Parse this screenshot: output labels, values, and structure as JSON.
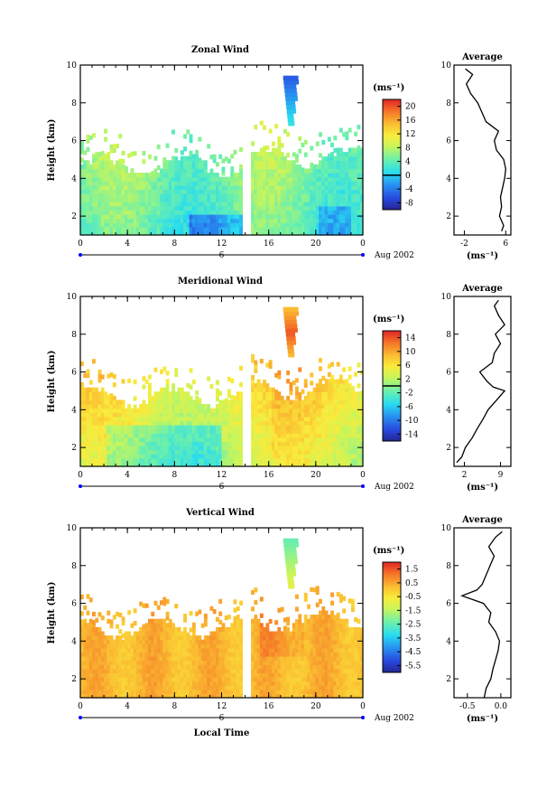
{
  "chart_data": [
    {
      "type": "heatmap",
      "title": "Zonal Wind",
      "ylabel": "Height (km)",
      "xlabel": "",
      "x_ticks": [
        "0",
        "4",
        "8",
        "12",
        "16",
        "20",
        "0"
      ],
      "y_ticks": [
        "2",
        "4",
        "6",
        "8",
        "10"
      ],
      "date_mark": "6",
      "date_label": "Aug 2002",
      "xlim": [
        0,
        24
      ],
      "ylim": [
        1,
        10
      ],
      "colorbar": {
        "unit": "(ms⁻¹)",
        "ticks": [
          "-8",
          "-4",
          "0",
          "4",
          "8",
          "12",
          "16",
          "20"
        ],
        "range": [
          -10,
          22
        ],
        "contour_at": 0
      },
      "data_gap": [
        13.8,
        14.4
      ],
      "profile": {
        "title": "Average",
        "unit": "(ms⁻¹)",
        "x_ticks": [
          "-2",
          "6"
        ],
        "xlim": [
          -4,
          7
        ],
        "y_ticks": [
          "2",
          "4",
          "6",
          "8",
          "10"
        ],
        "heights": [
          1.2,
          1.5,
          2.0,
          2.5,
          3.0,
          3.5,
          4.0,
          4.5,
          5.0,
          5.5,
          6.0,
          6.5,
          7.0,
          7.5,
          8.0,
          8.5,
          9.0,
          9.5,
          9.8
        ],
        "values": [
          5.2,
          5.6,
          4.8,
          5.2,
          5.0,
          5.4,
          5.8,
          6.0,
          5.6,
          4.2,
          3.8,
          4.6,
          2.2,
          1.4,
          0.6,
          -0.8,
          -1.6,
          -0.4,
          -1.8
        ]
      }
    },
    {
      "type": "heatmap",
      "title": "Meridional Wind",
      "ylabel": "Height (km)",
      "xlabel": "",
      "x_ticks": [
        "0",
        "4",
        "8",
        "12",
        "16",
        "20",
        "0"
      ],
      "y_ticks": [
        "2",
        "4",
        "6",
        "8",
        "10"
      ],
      "date_mark": "6",
      "date_label": "Aug 2002",
      "xlim": [
        0,
        24
      ],
      "ylim": [
        1,
        10
      ],
      "colorbar": {
        "unit": "(ms⁻¹)",
        "ticks": [
          "-14",
          "-10",
          "-6",
          "-2",
          "2",
          "6",
          "10",
          "14"
        ],
        "range": [
          -16,
          16
        ],
        "contour_at": 0
      },
      "data_gap": [
        13.8,
        14.4
      ],
      "profile": {
        "title": "Average",
        "unit": "(ms⁻¹)",
        "x_ticks": [
          "2",
          "9"
        ],
        "xlim": [
          0,
          11
        ],
        "y_ticks": [
          "2",
          "4",
          "6",
          "8",
          "10"
        ],
        "heights": [
          1.2,
          1.5,
          2.0,
          2.5,
          3.0,
          3.5,
          4.0,
          4.5,
          5.0,
          5.2,
          5.5,
          6.0,
          6.5,
          7.0,
          7.5,
          8.0,
          8.5,
          9.0,
          9.5,
          9.8
        ],
        "values": [
          0.5,
          1.5,
          2.2,
          3.5,
          4.5,
          5.6,
          6.6,
          8.2,
          9.8,
          7.6,
          6.4,
          5.0,
          7.4,
          7.8,
          9.0,
          8.0,
          9.8,
          8.6,
          7.8,
          8.6
        ]
      }
    },
    {
      "type": "heatmap",
      "title": "Vertical Wind",
      "ylabel": "Height (km)",
      "xlabel": "Local Time",
      "x_ticks": [
        "0",
        "4",
        "8",
        "12",
        "16",
        "20",
        "0"
      ],
      "y_ticks": [
        "2",
        "4",
        "6",
        "8",
        "10"
      ],
      "date_mark": "6",
      "date_label": "Aug 2002",
      "xlim": [
        0,
        24
      ],
      "ylim": [
        1,
        10
      ],
      "colorbar": {
        "unit": "(ms⁻¹)",
        "ticks": [
          "-5.5",
          "-4.5",
          "-3.5",
          "-2.5",
          "-1.5",
          "-0.5",
          "0.5",
          "1.5"
        ],
        "range": [
          -6,
          2
        ]
      },
      "data_gap": [
        13.8,
        14.4
      ],
      "profile": {
        "title": "Average",
        "unit": "(ms⁻¹)",
        "x_ticks": [
          "-0.5",
          "0.0"
        ],
        "xlim": [
          -0.7,
          0.15
        ],
        "y_ticks": [
          "2",
          "4",
          "6",
          "8",
          "10"
        ],
        "heights": [
          1.0,
          1.5,
          2.0,
          2.5,
          3.0,
          3.5,
          4.0,
          4.5,
          5.0,
          5.5,
          6.0,
          6.4,
          6.7,
          7.0,
          7.5,
          8.0,
          8.5,
          9.0,
          9.5,
          9.8
        ],
        "values": [
          -0.25,
          -0.22,
          -0.15,
          -0.12,
          -0.08,
          -0.04,
          -0.02,
          -0.08,
          -0.18,
          -0.15,
          -0.26,
          -0.58,
          -0.36,
          -0.28,
          -0.22,
          -0.16,
          -0.1,
          -0.18,
          -0.08,
          0.02
        ]
      }
    }
  ]
}
